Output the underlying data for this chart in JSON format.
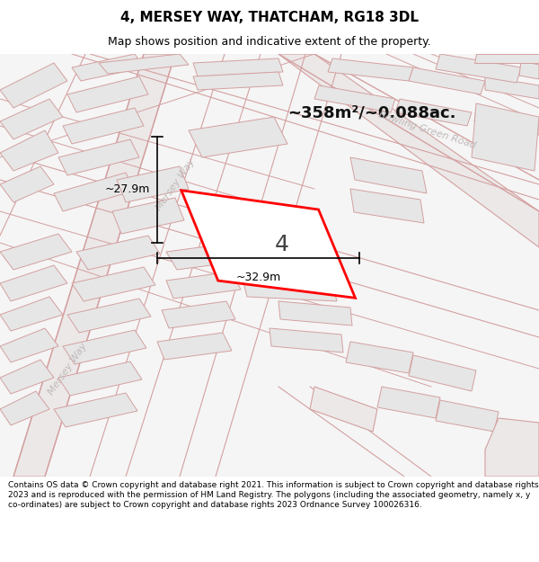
{
  "title_line1": "4, MERSEY WAY, THATCHAM, RG18 3DL",
  "title_line2": "Map shows position and indicative extent of the property.",
  "area_text": "~358m²/~0.088ac.",
  "label_number": "4",
  "dim_width": "~32.9m",
  "dim_height": "~27.9m",
  "road_label_bowling": "Bowling Green Road",
  "road_label_mersey1": "Mersey Way",
  "road_label_mersey2": "Mersey Way",
  "footer_text": "Contains OS data © Crown copyright and database right 2021. This information is subject to Crown copyright and database rights 2023 and is reproduced with the permission of HM Land Registry. The polygons (including the associated geometry, namely x, y co-ordinates) are subject to Crown copyright and database rights 2023 Ordnance Survey 100026316.",
  "map_bg": "#f2f2f2",
  "block_fill": "#e6e6e6",
  "block_edge": "#d4a0a0",
  "road_line_color": "#d4a0a0",
  "road_fill": "#e8d8d8",
  "highlight_color": "#ff0000",
  "text_color": "#000000",
  "road_text_color": "#c0b0b0",
  "white": "#ffffff",
  "title_fontsize": 11,
  "subtitle_fontsize": 9,
  "area_fontsize": 13,
  "dim_fontsize": 9,
  "number_fontsize": 18,
  "road_label_fontsize": 8,
  "footer_fontsize": 6.5
}
